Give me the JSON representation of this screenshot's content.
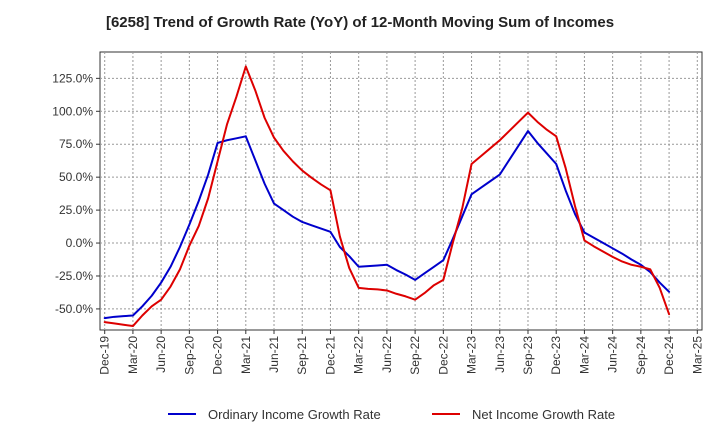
{
  "chart_data": {
    "type": "line",
    "title": "[6258]  Trend of Growth Rate (YoY) of 12-Month Moving Sum of Incomes",
    "xlabel": "",
    "ylabel": "",
    "ylim": [
      -66,
      145
    ],
    "grid": true,
    "legend_position": "bottom",
    "y_ticks": [
      -50,
      -25,
      0,
      25,
      50,
      75,
      100,
      125
    ],
    "y_tick_labels": [
      "-50.0%",
      "-25.0%",
      "0.0%",
      "25.0%",
      "50.0%",
      "75.0%",
      "100.0%",
      "125.0%"
    ],
    "x_tick_labels": [
      "Dec-19",
      "Mar-20",
      "Jun-20",
      "Sep-20",
      "Dec-20",
      "Mar-21",
      "Jun-21",
      "Sep-21",
      "Dec-21",
      "Mar-22",
      "Jun-22",
      "Sep-22",
      "Dec-22",
      "Mar-23",
      "Jun-23",
      "Sep-23",
      "Dec-23",
      "Mar-24",
      "Jun-24",
      "Sep-24",
      "Dec-24",
      "Mar-25"
    ],
    "categories": [
      "Dec-19",
      "Jan-20",
      "Feb-20",
      "Mar-20",
      "Apr-20",
      "May-20",
      "Jun-20",
      "Jul-20",
      "Aug-20",
      "Sep-20",
      "Oct-20",
      "Nov-20",
      "Dec-20",
      "Jan-21",
      "Feb-21",
      "Mar-21",
      "Apr-21",
      "May-21",
      "Jun-21",
      "Jul-21",
      "Aug-21",
      "Sep-21",
      "Oct-21",
      "Nov-21",
      "Dec-21",
      "Jan-22",
      "Feb-22",
      "Mar-22",
      "Apr-22",
      "May-22",
      "Jun-22",
      "Jul-22",
      "Aug-22",
      "Sep-22",
      "Oct-22",
      "Nov-22",
      "Dec-22",
      "Jan-23",
      "Feb-23",
      "Mar-23",
      "Apr-23",
      "May-23",
      "Jun-23",
      "Jul-23",
      "Aug-23",
      "Sep-23",
      "Oct-23",
      "Nov-23",
      "Dec-23",
      "Jan-24",
      "Feb-24",
      "Mar-24",
      "Apr-24",
      "May-24",
      "Jun-24",
      "Jul-24",
      "Aug-24",
      "Sep-24",
      "Oct-24",
      "Nov-24",
      "Dec-24",
      "Jan-25",
      "Feb-25",
      "Mar-25"
    ],
    "series": [
      {
        "name": "Ordinary Income Growth Rate",
        "color": "#0000cc",
        "values": [
          -57,
          -56,
          -55.5,
          -55,
          -48,
          -40,
          -30,
          -18,
          -3,
          14,
          32,
          52,
          76,
          78,
          79.5,
          81,
          63,
          45,
          30,
          25,
          20,
          16,
          13.5,
          11,
          8.5,
          -3,
          -10,
          -18,
          -17.5,
          -17,
          -16.5,
          -20.5,
          -24,
          -28,
          -23,
          -18,
          -13,
          3,
          20,
          37,
          42,
          47,
          52,
          63,
          74,
          85,
          76,
          68,
          60,
          40,
          22,
          8,
          4,
          0,
          -4,
          -8,
          -12.5,
          -16.5,
          -22,
          -30,
          -37,
          null,
          null,
          null
        ]
      },
      {
        "name": "Net Income Growth Rate",
        "color": "#dd0000",
        "values": [
          -60,
          -61,
          -62,
          -63,
          -55,
          -48,
          -43,
          -33,
          -20,
          -2,
          13,
          34,
          62,
          90,
          111,
          134,
          116,
          95,
          80,
          70,
          62,
          55,
          49.5,
          44.5,
          40,
          5,
          -19,
          -34,
          -34.8,
          -35.2,
          -36,
          -38.5,
          -40.5,
          -43,
          -38,
          -32,
          -28,
          0,
          26,
          60,
          66,
          72,
          78,
          85,
          92,
          99,
          92,
          86,
          81,
          57,
          28,
          2,
          -2.5,
          -6.5,
          -10.5,
          -14,
          -16.5,
          -18,
          -20,
          -34,
          -54,
          null,
          null,
          null
        ]
      }
    ]
  }
}
